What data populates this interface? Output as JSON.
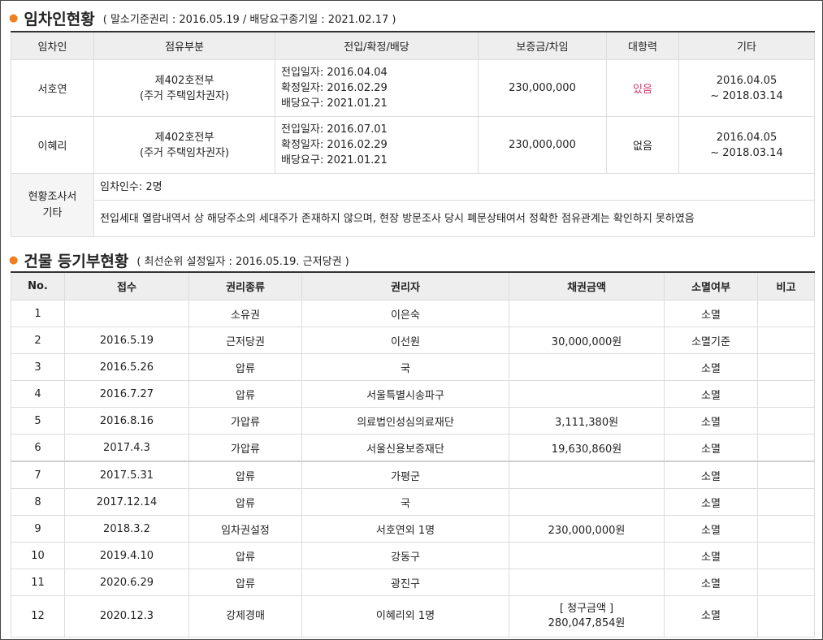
{
  "tenant_section": {
    "title": "임차인현황",
    "subtitle": "( 말소기준권리 : 2016.05.19 / 배당요구종기일 : 2021.02.17 )",
    "headers": [
      "임차인",
      "점유부분",
      "전입/확정/배당",
      "보증금/차임",
      "대항력",
      "기타"
    ],
    "rows": [
      {
        "name": "서호연",
        "occupancy_line1": "제402호전부",
        "occupancy_line2": "(주거 주택임차권자)",
        "move_in": "전입일자: 2016.04.04",
        "fixed": "확정일자: 2016.02.29",
        "dividend": "배당요구: 2021.01.21",
        "deposit": "230,000,000",
        "opposing": "있음",
        "etc_line1": "2016.04.05",
        "etc_line2": "~ 2018.03.14"
      },
      {
        "name": "이혜리",
        "occupancy_line1": "제402호전부",
        "occupancy_line2": "(주거 주택임차권자)",
        "move_in": "전입일자: 2016.07.01",
        "fixed": "확정일자: 2016.02.29",
        "dividend": "배당요구: 2021.01.21",
        "deposit": "230,000,000",
        "opposing": "없음",
        "etc_line1": "2016.04.05",
        "etc_line2": "~ 2018.03.14"
      }
    ],
    "survey_label_line1": "현황조사서",
    "survey_label_line2": "기타",
    "survey_count": "임차인수: 2명",
    "survey_note": "전입세대 열람내역서 상 해당주소의 세대주가 존재하지 않으며, 현장 방문조사 당시 폐문상태여서 정확한 점유관계는 확인하지 못하였음"
  },
  "registry_section": {
    "title": "건물 등기부현황",
    "subtitle": "( 최선순위 설정일자 : 2016.05.19. 근저당권 )",
    "headers": [
      "No.",
      "접수",
      "권리종류",
      "권리자",
      "채권금액",
      "소멸여부",
      "비고"
    ],
    "rows": [
      {
        "no": "1",
        "date": "",
        "type": "소유권",
        "holder": "이은숙",
        "amount": "",
        "status": "소멸",
        "note": ""
      },
      {
        "no": "2",
        "date": "2016.5.19",
        "type": "근저당권",
        "holder": "이선원",
        "amount": "30,000,000원",
        "status": "소멸기준",
        "note": ""
      },
      {
        "no": "3",
        "date": "2016.5.26",
        "type": "압류",
        "holder": "국",
        "amount": "",
        "status": "소멸",
        "note": ""
      },
      {
        "no": "4",
        "date": "2016.7.27",
        "type": "압류",
        "holder": "서울특별시송파구",
        "amount": "",
        "status": "소멸",
        "note": ""
      },
      {
        "no": "5",
        "date": "2016.8.16",
        "type": "가압류",
        "holder": "의료법인성심의료재단",
        "amount": "3,111,380원",
        "status": "소멸",
        "note": ""
      },
      {
        "no": "6",
        "date": "2017.4.3",
        "type": "가압류",
        "holder": "서울신용보증재단",
        "amount": "19,630,860원",
        "status": "소멸",
        "note": ""
      },
      {
        "no": "7",
        "date": "2017.5.31",
        "type": "압류",
        "holder": "가평군",
        "amount": "",
        "status": "소멸",
        "note": ""
      },
      {
        "no": "8",
        "date": "2017.12.14",
        "type": "압류",
        "holder": "국",
        "amount": "",
        "status": "소멸",
        "note": ""
      },
      {
        "no": "9",
        "date": "2018.3.2",
        "type": "임차권설정",
        "holder": "서호연외 1명",
        "amount": "230,000,000원",
        "status": "소멸",
        "note": ""
      },
      {
        "no": "10",
        "date": "2019.4.10",
        "type": "압류",
        "holder": "강동구",
        "amount": "",
        "status": "소멸",
        "note": ""
      },
      {
        "no": "11",
        "date": "2020.6.29",
        "type": "압류",
        "holder": "광진구",
        "amount": "",
        "status": "소멸",
        "note": ""
      },
      {
        "no": "12",
        "date": "2020.12.3",
        "type": "강제경매",
        "holder": "이혜리외 1명",
        "amount_label": "[ 청구금액 ]",
        "amount": "280,047,854원",
        "status": "소멸",
        "note": ""
      }
    ]
  },
  "colors": {
    "accent": "#f07d1e",
    "highlight": "#d6336c",
    "header_bg": "#eeeeee"
  }
}
